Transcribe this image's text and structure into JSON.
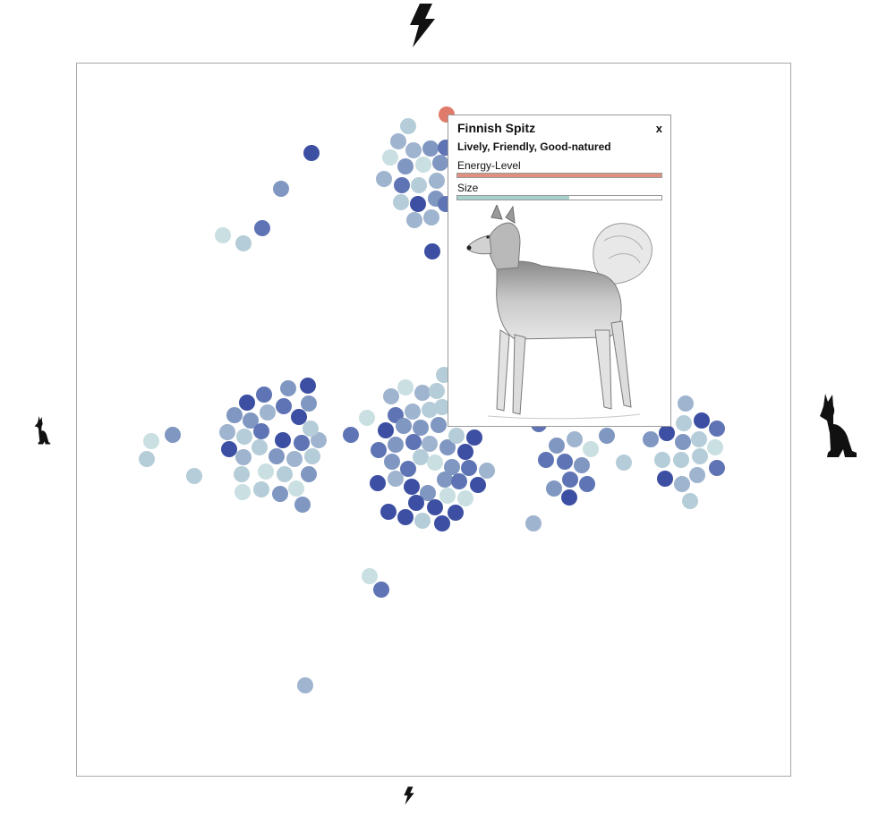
{
  "axes": {
    "top_icon": "lightning-bolt-large-icon",
    "bottom_icon": "lightning-bolt-small-icon",
    "left_icon": "small-dog-silhouette-icon",
    "right_icon": "large-dog-silhouette-icon"
  },
  "colors": {
    "highlight": "#e07a6a",
    "dot_shades": [
      "#c9dfe1",
      "#b5cdd8",
      "#9fb4cf",
      "#8097c2",
      "#5f74b4",
      "#3c4fa2"
    ],
    "energy_bar": "#e09080",
    "size_bar": "#a8d0cc",
    "frame_border": "#a8a8a8"
  },
  "popup": {
    "name": "Finnish Spitz",
    "close_label": "x",
    "temperament": "Lively, Friendly, Good-natured",
    "energy_label": "Energy-Level",
    "energy_value": 1.0,
    "size_label": "Size",
    "size_value": 0.55,
    "image_icon": "finnish-spitz-illustration"
  }
}
